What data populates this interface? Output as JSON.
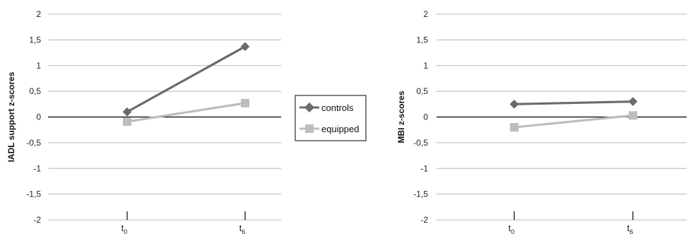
{
  "legend": {
    "entries": [
      {
        "label": "controls",
        "color": "#6b6b6b",
        "marker": "diamond"
      },
      {
        "label": "equipped",
        "color": "#bdbdbd",
        "marker": "square"
      }
    ],
    "placement": "between-panels"
  },
  "chart_data": [
    {
      "type": "line",
      "title": "",
      "xlabel": "",
      "ylabel": "IADL support z-scores",
      "x": [
        "t0",
        "t6"
      ],
      "x_tick_labels": [
        {
          "base": "t",
          "sub": "0"
        },
        {
          "base": "t",
          "sub": "6"
        }
      ],
      "ylim": [
        -2,
        2
      ],
      "yticks": [
        "2",
        "1,5",
        "1",
        "0,5",
        "0",
        "-0,5",
        "-1",
        "-1,5",
        "-2"
      ],
      "ytick_values": [
        2,
        1.5,
        1,
        0.5,
        0,
        -0.5,
        -1,
        -1.5,
        -2
      ],
      "grid": true,
      "series": [
        {
          "name": "controls",
          "values": [
            0.1,
            1.37
          ],
          "color": "#6b6b6b",
          "marker": "diamond"
        },
        {
          "name": "equipped",
          "values": [
            -0.09,
            0.27
          ],
          "color": "#bdbdbd",
          "marker": "square"
        }
      ]
    },
    {
      "type": "line",
      "title": "",
      "xlabel": "",
      "ylabel": "MBI z-scores",
      "x": [
        "t0",
        "t6"
      ],
      "x_tick_labels": [
        {
          "base": "t",
          "sub": "0"
        },
        {
          "base": "t",
          "sub": "6"
        }
      ],
      "ylim": [
        -2,
        2
      ],
      "yticks": [
        "2",
        "1,5",
        "1",
        "0,5",
        "0",
        "-0,5",
        "-1",
        "-1,5",
        "-2"
      ],
      "ytick_values": [
        2,
        1.5,
        1,
        0.5,
        0,
        -0.5,
        -1,
        -1.5,
        -2
      ],
      "grid": true,
      "series": [
        {
          "name": "controls",
          "values": [
            0.25,
            0.3
          ],
          "color": "#6b6b6b",
          "marker": "diamond"
        },
        {
          "name": "equipped",
          "values": [
            -0.2,
            0.03
          ],
          "color": "#bdbdbd",
          "marker": "square"
        }
      ]
    }
  ]
}
